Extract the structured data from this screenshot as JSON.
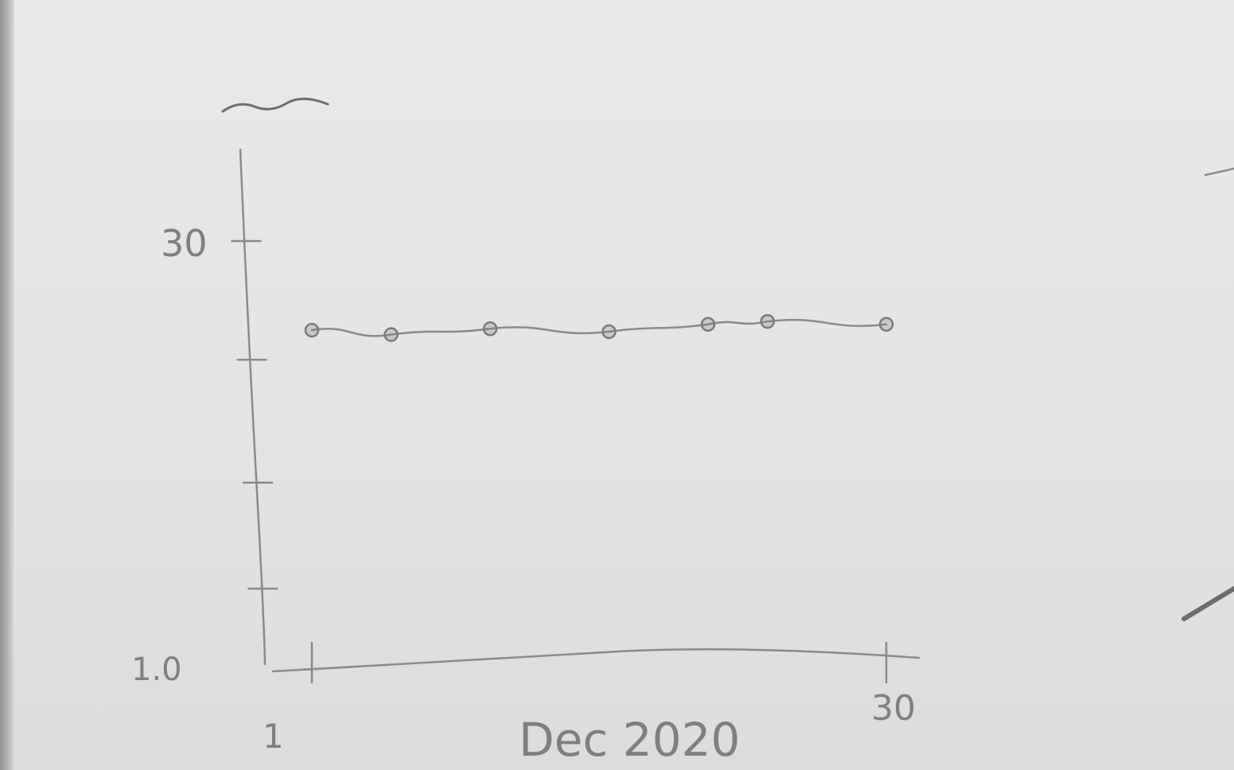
{
  "chart_data": {
    "type": "line",
    "title": "",
    "xlabel": "Dec 2020",
    "ylabel": "",
    "x_tick_labels": [
      "1",
      "30"
    ],
    "y_tick_labels": [
      "1.0",
      "30"
    ],
    "xlim": [
      1,
      30
    ],
    "ylim": [
      1,
      30
    ],
    "grid": false,
    "series": [
      {
        "x": [
          1,
          5,
          10,
          16,
          21,
          24,
          30
        ],
        "y": [
          23.9,
          23.6,
          24.0,
          23.8,
          24.3,
          24.5,
          24.3
        ]
      }
    ]
  }
}
